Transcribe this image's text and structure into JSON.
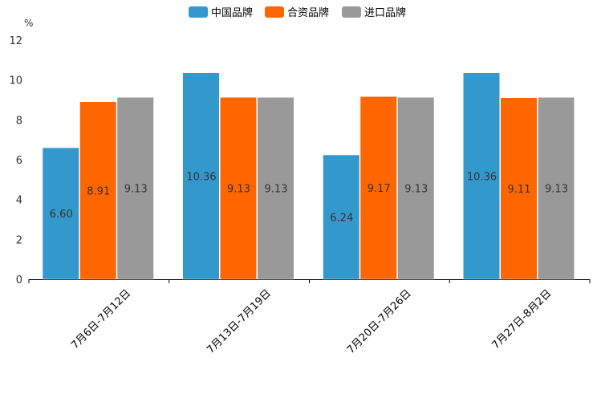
{
  "chart_data": {
    "type": "bar",
    "title": "",
    "ylabel": "%",
    "xlabel": "",
    "ylim": [
      0,
      12
    ],
    "yticks": [
      0,
      2,
      4,
      6,
      8,
      10,
      12
    ],
    "grid": false,
    "legend_position": "top-center",
    "categories": [
      "7月6日-7月12日",
      "7月13日-7月19日",
      "7月20日-7月26日",
      "7月27日-8月2日"
    ],
    "series": [
      {
        "name": "中国品牌",
        "color": "#3399cc",
        "values": [
          6.6,
          10.36,
          6.24,
          10.36
        ]
      },
      {
        "name": "合资品牌",
        "color": "#ff6600",
        "values": [
          8.91,
          9.13,
          9.17,
          9.11
        ]
      },
      {
        "name": "进口品牌",
        "color": "#999999",
        "values": [
          9.13,
          9.13,
          9.13,
          9.13
        ]
      }
    ]
  }
}
